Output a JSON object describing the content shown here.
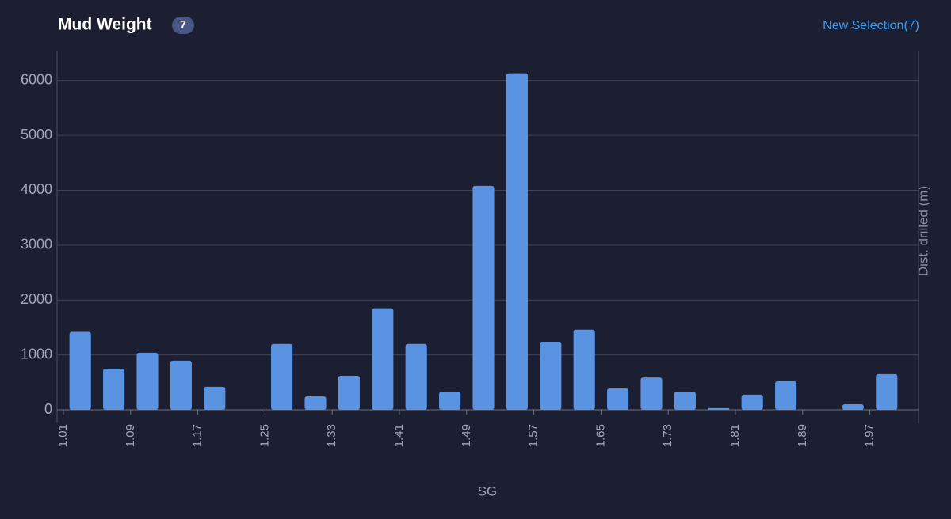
{
  "header": {
    "title": "Mud Weight",
    "badge": "7",
    "link": "New Selection(7)"
  },
  "chart_data": {
    "type": "histogram",
    "x_label": "SG",
    "y_label": "Dist. drilled (m)",
    "bins": [
      1.01,
      1.05,
      1.09,
      1.13,
      1.17,
      1.21,
      1.25,
      1.29,
      1.33,
      1.37,
      1.41,
      1.45,
      1.49,
      1.53,
      1.57,
      1.61,
      1.65,
      1.69,
      1.73,
      1.77,
      1.81,
      1.85,
      1.89,
      1.93,
      1.97,
      2.01
    ],
    "values": [
      1420,
      750,
      1040,
      895,
      420,
      0,
      1200,
      245,
      620,
      1850,
      1200,
      330,
      4080,
      6130,
      1240,
      1460,
      390,
      590,
      330,
      30,
      275,
      520,
      0,
      100,
      650
    ],
    "color": "#5a93e2",
    "xlim": [
      1.01,
      2.01
    ],
    "xticks": [
      1.01,
      1.09,
      1.17,
      1.25,
      1.33,
      1.41,
      1.49,
      1.57,
      1.65,
      1.73,
      1.81,
      1.89,
      1.97
    ],
    "ylim": [
      0,
      6500
    ],
    "yticks": [
      0,
      1000,
      2000,
      3000,
      4000,
      5000,
      6000
    ],
    "grid": true
  }
}
